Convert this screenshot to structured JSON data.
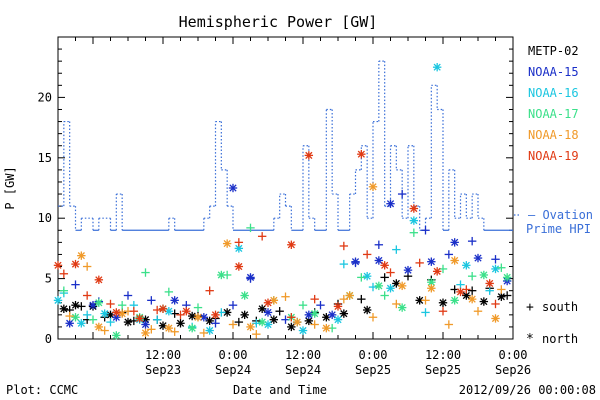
{
  "chart_data": {
    "type": "scatter",
    "title": "Hemispheric Power [GW]",
    "xlabel": "Date and Time",
    "ylabel": "P [GW]",
    "xlim": [
      "2012-09-22 18:00",
      "2012-09-26 00:00"
    ],
    "ylim": [
      0,
      25
    ],
    "x_ticks": [
      {
        "time": "12:00",
        "date": "Sep23",
        "x": "2012-09-23 12:00"
      },
      {
        "time": "0:00",
        "date": "Sep24",
        "x": "2012-09-24 00:00"
      },
      {
        "time": "12:00",
        "date": "Sep24",
        "x": "2012-09-24 12:00"
      },
      {
        "time": "0:00",
        "date": "Sep25",
        "x": "2012-09-25 00:00"
      },
      {
        "time": "12:00",
        "date": "Sep25",
        "x": "2012-09-25 12:00"
      },
      {
        "time": "0:00",
        "date": "Sep26",
        "x": "2012-09-26 00:00"
      }
    ],
    "y_ticks": [
      0,
      5,
      10,
      15,
      20
    ],
    "x_start": "2012-09-22 18:00",
    "x_hours_total": 78,
    "legend": [
      {
        "name": "METP-02",
        "color": "#000000"
      },
      {
        "name": "NOAA-15",
        "color": "#1a2fc8"
      },
      {
        "name": "NOAA-16",
        "color": "#1bc6e0"
      },
      {
        "name": "NOAA-17",
        "color": "#3be08a"
      },
      {
        "name": "NOAA-18",
        "color": "#f09a2a"
      },
      {
        "name": "NOAA-19",
        "color": "#e03a14"
      }
    ],
    "ovation_label": [
      "Ovation",
      "Prime HPI"
    ],
    "ovation_color": "#3a6fd8",
    "marker_legend": [
      {
        "symbol": "+",
        "label": "south"
      },
      {
        "symbol": "*",
        "label": "north"
      }
    ],
    "ovation_series": [
      [
        0,
        11
      ],
      [
        1,
        11
      ],
      [
        1,
        18
      ],
      [
        2,
        18
      ],
      [
        2,
        11
      ],
      [
        3,
        11
      ],
      [
        3,
        9
      ],
      [
        4,
        9
      ],
      [
        4,
        10
      ],
      [
        6,
        10
      ],
      [
        6,
        9
      ],
      [
        7,
        9
      ],
      [
        7,
        10
      ],
      [
        9,
        10
      ],
      [
        9,
        9
      ],
      [
        10,
        9
      ],
      [
        10,
        12
      ],
      [
        11,
        12
      ],
      [
        11,
        9
      ],
      [
        19,
        9
      ],
      [
        19,
        10
      ],
      [
        20,
        10
      ],
      [
        20,
        9
      ],
      [
        25,
        9
      ],
      [
        25,
        10
      ],
      [
        26,
        10
      ],
      [
        26,
        11
      ],
      [
        27,
        11
      ],
      [
        27,
        18
      ],
      [
        28,
        18
      ],
      [
        28,
        14
      ],
      [
        29,
        14
      ],
      [
        29,
        11
      ],
      [
        30,
        11
      ],
      [
        30,
        9
      ],
      [
        37,
        9
      ],
      [
        37,
        10
      ],
      [
        38,
        10
      ],
      [
        38,
        12
      ],
      [
        39,
        12
      ],
      [
        39,
        11
      ],
      [
        40,
        11
      ],
      [
        40,
        9
      ],
      [
        42,
        9
      ],
      [
        42,
        16
      ],
      [
        43,
        16
      ],
      [
        43,
        10
      ],
      [
        44,
        10
      ],
      [
        44,
        9
      ],
      [
        46,
        9
      ],
      [
        46,
        19
      ],
      [
        47,
        19
      ],
      [
        47,
        12
      ],
      [
        48,
        12
      ],
      [
        48,
        9
      ],
      [
        50,
        9
      ],
      [
        50,
        12
      ],
      [
        51,
        12
      ],
      [
        51,
        14
      ],
      [
        52,
        14
      ],
      [
        52,
        16
      ],
      [
        53,
        16
      ],
      [
        53,
        10
      ],
      [
        54,
        10
      ],
      [
        54,
        18
      ],
      [
        55,
        18
      ],
      [
        55,
        23
      ],
      [
        56,
        23
      ],
      [
        56,
        11
      ],
      [
        57,
        11
      ],
      [
        57,
        16
      ],
      [
        58,
        16
      ],
      [
        58,
        14
      ],
      [
        59,
        14
      ],
      [
        59,
        10
      ],
      [
        60,
        10
      ],
      [
        60,
        16
      ],
      [
        61,
        16
      ],
      [
        61,
        11
      ],
      [
        62,
        11
      ],
      [
        62,
        9
      ],
      [
        63,
        9
      ],
      [
        63,
        10
      ],
      [
        64,
        10
      ],
      [
        64,
        21
      ],
      [
        65,
        21
      ],
      [
        65,
        19
      ],
      [
        66,
        19
      ],
      [
        66,
        9
      ],
      [
        67,
        9
      ],
      [
        67,
        14
      ],
      [
        68,
        14
      ],
      [
        68,
        10
      ],
      [
        69,
        10
      ],
      [
        69,
        12
      ],
      [
        70,
        12
      ],
      [
        70,
        10
      ],
      [
        71,
        10
      ],
      [
        71,
        12
      ],
      [
        72,
        12
      ],
      [
        72,
        10
      ],
      [
        73,
        10
      ],
      [
        73,
        9
      ],
      [
        78,
        9
      ]
    ],
    "series": [
      {
        "name": "METP-02",
        "marker": "+",
        "points": [
          [
            2,
            2.4
          ],
          [
            4,
            2.7
          ],
          [
            5,
            1.6
          ],
          [
            8,
            1.8
          ],
          [
            11,
            2.2
          ],
          [
            13,
            1.5
          ],
          [
            17,
            1.6
          ],
          [
            20,
            2.1
          ],
          [
            24,
            1.9
          ],
          [
            27,
            1.7
          ],
          [
            31,
            1.4
          ],
          [
            34,
            1.5
          ],
          [
            38,
            2.3
          ],
          [
            41,
            1.4
          ],
          [
            44,
            2.2
          ],
          [
            48,
            2.9
          ],
          [
            52,
            3.3
          ],
          [
            56,
            5.1
          ],
          [
            60,
            5.2
          ],
          [
            64,
            4.9
          ],
          [
            68,
            4.1
          ],
          [
            71,
            4.0
          ],
          [
            74,
            4.2
          ],
          [
            77,
            3.6
          ]
        ]
      },
      {
        "name": "METP-02",
        "marker": "*",
        "points": [
          [
            1,
            2.5
          ],
          [
            3,
            2.8
          ],
          [
            6,
            2.7
          ],
          [
            9,
            2.0
          ],
          [
            12,
            1.4
          ],
          [
            15,
            1.6
          ],
          [
            18,
            1.1
          ],
          [
            21,
            1.3
          ],
          [
            23,
            1.9
          ],
          [
            26,
            1.5
          ],
          [
            29,
            2.2
          ],
          [
            32,
            2.0
          ],
          [
            35,
            2.5
          ],
          [
            37,
            1.6
          ],
          [
            40,
            1.0
          ],
          [
            43,
            1.5
          ],
          [
            46,
            1.8
          ],
          [
            49,
            2.1
          ],
          [
            53,
            2.4
          ],
          [
            58,
            4.6
          ],
          [
            62,
            3.2
          ],
          [
            66,
            3.0
          ],
          [
            70,
            3.6
          ],
          [
            73,
            3.1
          ],
          [
            76,
            3.5
          ]
        ]
      },
      {
        "name": "NOAA-15",
        "marker": "+",
        "points": [
          [
            3,
            4.5
          ],
          [
            7,
            3.1
          ],
          [
            12,
            3.6
          ],
          [
            16,
            3.2
          ],
          [
            22,
            2.8
          ],
          [
            27,
            1.3
          ],
          [
            30,
            2.8
          ],
          [
            33,
            5.0
          ],
          [
            39,
            1.6
          ],
          [
            45,
            2.8
          ],
          [
            51,
            6.3
          ],
          [
            55,
            7.8
          ],
          [
            59,
            12.0
          ],
          [
            63,
            9.0
          ],
          [
            67,
            7.0
          ],
          [
            71,
            8.1
          ],
          [
            75,
            6.6
          ]
        ]
      },
      {
        "name": "NOAA-15",
        "marker": "*",
        "points": [
          [
            2,
            1.3
          ],
          [
            6,
            2.8
          ],
          [
            10,
            1.8
          ],
          [
            15,
            1.2
          ],
          [
            20,
            3.2
          ],
          [
            25,
            1.8
          ],
          [
            30,
            12.5
          ],
          [
            33,
            5.1
          ],
          [
            36,
            2.2
          ],
          [
            43,
            2.0
          ],
          [
            47,
            2.0
          ],
          [
            51,
            6.4
          ],
          [
            55,
            6.5
          ],
          [
            57,
            11.2
          ],
          [
            60,
            5.7
          ],
          [
            64,
            6.4
          ],
          [
            68,
            8.0
          ],
          [
            72,
            6.7
          ],
          [
            77,
            4.8
          ]
        ]
      },
      {
        "name": "NOAA-16",
        "marker": "+",
        "points": [
          [
            1,
            3.8
          ],
          [
            5,
            2.0
          ],
          [
            9,
            1.4
          ],
          [
            13,
            2.8
          ],
          [
            17,
            1.6
          ],
          [
            23,
            1.0
          ],
          [
            28,
            2.2
          ],
          [
            34,
            1.3
          ],
          [
            41,
            1.4
          ],
          [
            49,
            6.2
          ],
          [
            54,
            4.3
          ],
          [
            58,
            7.4
          ],
          [
            63,
            2.2
          ],
          [
            69,
            4.5
          ],
          [
            74,
            4.0
          ]
        ]
      },
      {
        "name": "NOAA-16",
        "marker": "*",
        "points": [
          [
            0,
            3.2
          ],
          [
            4,
            1.3
          ],
          [
            8,
            2.1
          ],
          [
            14,
            1.6
          ],
          [
            19,
            2.3
          ],
          [
            26,
            0.7
          ],
          [
            31,
            7.5
          ],
          [
            36,
            1.2
          ],
          [
            42,
            0.7
          ],
          [
            48,
            1.6
          ],
          [
            53,
            5.2
          ],
          [
            57,
            4.2
          ],
          [
            61,
            9.8
          ],
          [
            65,
            22.5
          ],
          [
            70,
            6.1
          ],
          [
            75,
            5.8
          ]
        ]
      },
      {
        "name": "NOAA-17",
        "marker": "+",
        "points": [
          [
            1,
            4.0
          ],
          [
            6,
            1.6
          ],
          [
            11,
            2.8
          ],
          [
            15,
            5.5
          ],
          [
            19,
            3.9
          ],
          [
            24,
            2.6
          ],
          [
            29,
            5.3
          ],
          [
            33,
            9.2
          ],
          [
            37,
            3.2
          ],
          [
            42,
            2.8
          ],
          [
            47,
            0.9
          ],
          [
            52,
            5.1
          ],
          [
            56,
            3.6
          ],
          [
            61,
            8.8
          ],
          [
            66,
            5.8
          ],
          [
            71,
            5.2
          ],
          [
            76,
            5.9
          ]
        ]
      },
      {
        "name": "NOAA-17",
        "marker": "*",
        "points": [
          [
            3,
            1.8
          ],
          [
            7,
            3.0
          ],
          [
            10,
            0.3
          ],
          [
            14,
            1.8
          ],
          [
            18,
            2.5
          ],
          [
            23,
            0.9
          ],
          [
            28,
            5.3
          ],
          [
            32,
            3.6
          ],
          [
            35,
            1.4
          ],
          [
            40,
            1.8
          ],
          [
            44,
            2.1
          ],
          [
            50,
            3.6
          ],
          [
            55,
            4.4
          ],
          [
            59,
            2.6
          ],
          [
            64,
            4.7
          ],
          [
            68,
            3.2
          ],
          [
            73,
            5.3
          ],
          [
            77,
            5.1
          ]
        ]
      },
      {
        "name": "NOAA-18",
        "marker": "+",
        "points": [
          [
            2,
            1.9
          ],
          [
            5,
            6.0
          ],
          [
            8,
            0.7
          ],
          [
            12,
            2.3
          ],
          [
            16,
            0.8
          ],
          [
            20,
            0.6
          ],
          [
            25,
            0.5
          ],
          [
            30,
            1.2
          ],
          [
            34,
            0.4
          ],
          [
            39,
            3.5
          ],
          [
            44,
            1.2
          ],
          [
            49,
            3.3
          ],
          [
            54,
            1.8
          ],
          [
            58,
            2.9
          ],
          [
            63,
            3.2
          ],
          [
            67,
            1.2
          ],
          [
            72,
            2.3
          ],
          [
            76,
            4.1
          ]
        ]
      },
      {
        "name": "NOAA-18",
        "marker": "*",
        "points": [
          [
            4,
            6.9
          ],
          [
            7,
            1.0
          ],
          [
            11,
            2.1
          ],
          [
            15,
            0.5
          ],
          [
            19,
            0.9
          ],
          [
            24,
            1.8
          ],
          [
            29,
            7.9
          ],
          [
            33,
            1.0
          ],
          [
            37,
            3.2
          ],
          [
            41,
            1.4
          ],
          [
            46,
            0.9
          ],
          [
            50,
            3.6
          ],
          [
            54,
            12.6
          ],
          [
            59,
            4.4
          ],
          [
            64,
            4.2
          ],
          [
            68,
            6.5
          ],
          [
            71,
            3.3
          ],
          [
            75,
            1.7
          ]
        ]
      },
      {
        "name": "NOAA-19",
        "marker": "+",
        "points": [
          [
            1,
            5.4
          ],
          [
            5,
            3.6
          ],
          [
            9,
            2.9
          ],
          [
            13,
            2.3
          ],
          [
            17,
            2.4
          ],
          [
            21,
            2.0
          ],
          [
            26,
            4.0
          ],
          [
            31,
            8.0
          ],
          [
            35,
            8.5
          ],
          [
            40,
            1.8
          ],
          [
            44,
            3.3
          ],
          [
            49,
            7.7
          ],
          [
            53,
            7.0
          ],
          [
            57,
            5.5
          ],
          [
            62,
            6.3
          ],
          [
            66,
            2.3
          ],
          [
            70,
            4.1
          ],
          [
            75,
            2.9
          ]
        ]
      },
      {
        "name": "NOAA-19",
        "marker": "*",
        "points": [
          [
            0,
            6.1
          ],
          [
            3,
            6.2
          ],
          [
            7,
            4.9
          ],
          [
            10,
            2.2
          ],
          [
            14,
            1.7
          ],
          [
            18,
            2.5
          ],
          [
            22,
            2.3
          ],
          [
            27,
            2.0
          ],
          [
            31,
            6.0
          ],
          [
            36,
            3.0
          ],
          [
            40,
            7.8
          ],
          [
            43,
            15.2
          ],
          [
            48,
            2.7
          ],
          [
            52,
            15.3
          ],
          [
            56,
            6.1
          ],
          [
            61,
            10.8
          ],
          [
            65,
            5.6
          ],
          [
            69,
            3.9
          ],
          [
            74,
            4.6
          ]
        ]
      }
    ]
  },
  "footer": {
    "plot_label": "Plot: CCMC",
    "timestamp": "2012/09/26 00:00:08"
  }
}
